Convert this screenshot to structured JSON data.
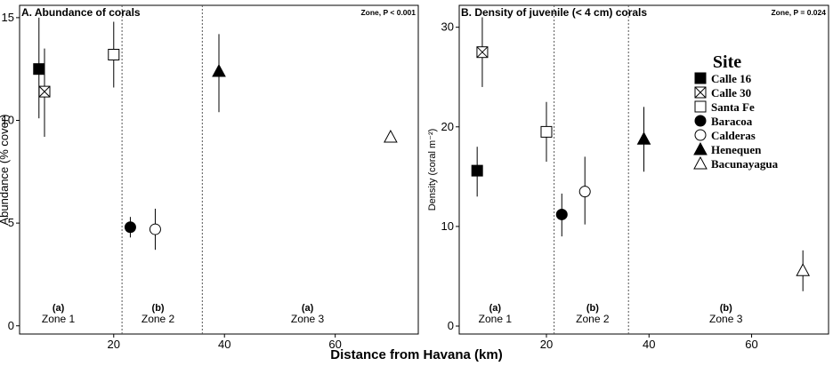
{
  "figure": {
    "xlabel": "Distance from Havana (km)"
  },
  "legend": {
    "title": "Site",
    "items": [
      {
        "name": "Calle 16",
        "marker": "filled-square"
      },
      {
        "name": "Calle 30",
        "marker": "crossed-square"
      },
      {
        "name": "Santa Fe",
        "marker": "open-square"
      },
      {
        "name": "Baracoa",
        "marker": "filled-circle"
      },
      {
        "name": "Calderas",
        "marker": "open-circle"
      },
      {
        "name": "Henequen",
        "marker": "filled-triangle"
      },
      {
        "name": "Bacunayagua",
        "marker": "open-triangle"
      }
    ]
  },
  "chart_data": [
    {
      "type": "scatter",
      "title": "A. Abundance of corals",
      "annotation": "Zone, P < 0.001",
      "ylabel": "Abundance  (% cover)",
      "xlim": [
        3,
        75
      ],
      "ylim": [
        -0.4,
        15.6
      ],
      "xticks": [
        "20",
        "40",
        "60"
      ],
      "yticks": [
        "0",
        "5",
        "10",
        "15"
      ],
      "zone_dividers": [
        21.5,
        36
      ],
      "zones": [
        {
          "name": "Zone 1",
          "letter": "(a)",
          "x": 10
        },
        {
          "name": "Zone 2",
          "letter": "(b)",
          "x": 28
        },
        {
          "name": "Zone 3",
          "letter": "(a)",
          "x": 55
        }
      ],
      "points": [
        {
          "site": "Calle 16",
          "x": 6.5,
          "y": 12.5,
          "ylow": 10.1,
          "yhigh": 15.0
        },
        {
          "site": "Calle 30",
          "x": 7.5,
          "y": 11.4,
          "ylow": 9.2,
          "yhigh": 13.5
        },
        {
          "site": "Santa Fe",
          "x": 20,
          "y": 13.2,
          "ylow": 11.6,
          "yhigh": 14.8
        },
        {
          "site": "Baracoa",
          "x": 23,
          "y": 4.8,
          "ylow": 4.3,
          "yhigh": 5.3
        },
        {
          "site": "Calderas",
          "x": 27.5,
          "y": 4.7,
          "ylow": 3.7,
          "yhigh": 5.7
        },
        {
          "site": "Henequen",
          "x": 39,
          "y": 12.4,
          "ylow": 10.4,
          "yhigh": 14.2
        },
        {
          "site": "Bacunayagua",
          "x": 70,
          "y": 9.2,
          "ylow": 9.2,
          "yhigh": 9.2
        }
      ]
    },
    {
      "type": "scatter",
      "title": "B. Density of juvenile (< 4 cm) corals",
      "annotation": "Zone, P = 0.024",
      "ylabel": "Density (coral m⁻²)",
      "xlim": [
        3,
        75
      ],
      "ylim": [
        -0.8,
        32.2
      ],
      "xticks": [
        "20",
        "40",
        "60"
      ],
      "yticks": [
        "0",
        "10",
        "20",
        "30"
      ],
      "zone_dividers": [
        21.5,
        36
      ],
      "zones": [
        {
          "name": "Zone 1",
          "letter": "(a)",
          "x": 10
        },
        {
          "name": "Zone 2",
          "letter": "(b)",
          "x": 29
        },
        {
          "name": "Zone 3",
          "letter": "(b)",
          "x": 55
        }
      ],
      "points": [
        {
          "site": "Calle 16",
          "x": 6.5,
          "y": 15.6,
          "ylow": 13.0,
          "yhigh": 18.0
        },
        {
          "site": "Calle 30",
          "x": 7.5,
          "y": 27.5,
          "ylow": 24.0,
          "yhigh": 31.0
        },
        {
          "site": "Santa Fe",
          "x": 20,
          "y": 19.5,
          "ylow": 16.5,
          "yhigh": 22.5
        },
        {
          "site": "Baracoa",
          "x": 23,
          "y": 11.2,
          "ylow": 9.0,
          "yhigh": 13.3
        },
        {
          "site": "Calderas",
          "x": 27.5,
          "y": 13.5,
          "ylow": 10.2,
          "yhigh": 17.0
        },
        {
          "site": "Henequen",
          "x": 39,
          "y": 18.8,
          "ylow": 15.5,
          "yhigh": 22.0
        },
        {
          "site": "Bacunayagua",
          "x": 70,
          "y": 5.6,
          "ylow": 3.5,
          "yhigh": 7.6
        }
      ]
    }
  ]
}
